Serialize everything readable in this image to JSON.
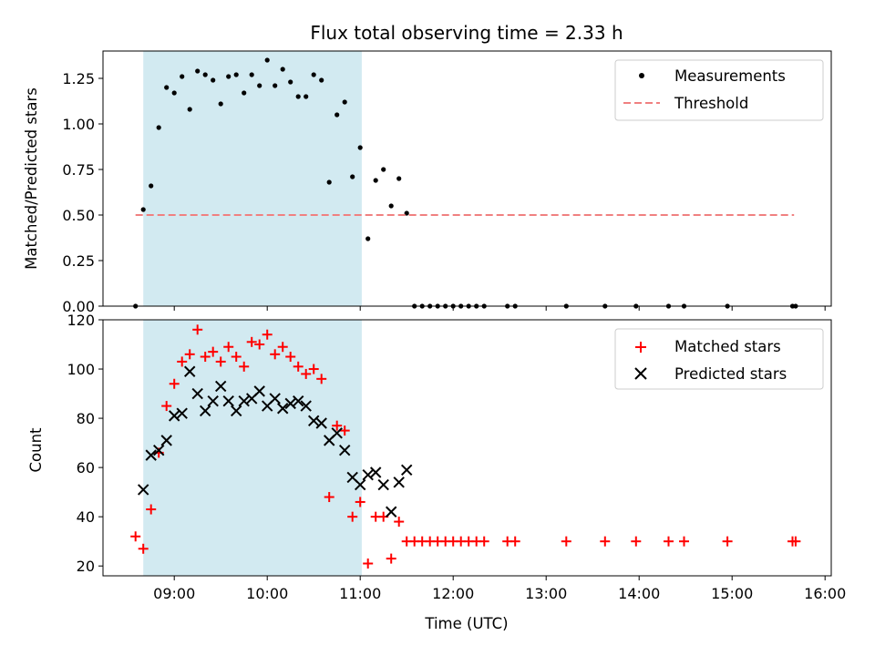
{
  "chart_data": [
    {
      "type": "scatter",
      "title": "Flux total observing time = 2.33 h",
      "xlabel": "",
      "ylabel": "Matched/Predicted stars",
      "xlim": [
        "08:14",
        "16:04"
      ],
      "ylim": [
        0,
        1.4
      ],
      "yticks": [
        "0.00",
        "0.25",
        "0.50",
        "0.75",
        "1.00",
        "1.25"
      ],
      "ytick_values": [
        0,
        0.25,
        0.5,
        0.75,
        1.0,
        1.25
      ],
      "shaded_interval": [
        "08:40",
        "11:01"
      ],
      "shade_color": "#add8e6",
      "legend_position": "upper right",
      "series": [
        {
          "name": "Measurements",
          "kind": "scatter",
          "marker": "dot",
          "color": "#000000",
          "points": [
            [
              "08:35",
              0.0
            ],
            [
              "08:40",
              0.53
            ],
            [
              "08:45",
              0.66
            ],
            [
              "08:50",
              0.98
            ],
            [
              "08:55",
              1.2
            ],
            [
              "09:00",
              1.17
            ],
            [
              "09:05",
              1.26
            ],
            [
              "09:10",
              1.08
            ],
            [
              "09:15",
              1.29
            ],
            [
              "09:20",
              1.27
            ],
            [
              "09:25",
              1.24
            ],
            [
              "09:30",
              1.11
            ],
            [
              "09:35",
              1.26
            ],
            [
              "09:40",
              1.27
            ],
            [
              "09:45",
              1.17
            ],
            [
              "09:50",
              1.27
            ],
            [
              "09:55",
              1.21
            ],
            [
              "10:00",
              1.35
            ],
            [
              "10:05",
              1.21
            ],
            [
              "10:10",
              1.3
            ],
            [
              "10:15",
              1.23
            ],
            [
              "10:20",
              1.15
            ],
            [
              "10:25",
              1.15
            ],
            [
              "10:30",
              1.27
            ],
            [
              "10:35",
              1.24
            ],
            [
              "10:40",
              0.68
            ],
            [
              "10:45",
              1.05
            ],
            [
              "10:50",
              1.12
            ],
            [
              "10:55",
              0.71
            ],
            [
              "11:00",
              0.87
            ],
            [
              "11:05",
              0.37
            ],
            [
              "11:10",
              0.69
            ],
            [
              "11:15",
              0.75
            ],
            [
              "11:20",
              0.55
            ],
            [
              "11:25",
              0.7
            ],
            [
              "11:30",
              0.51
            ],
            [
              "11:35",
              0.0
            ],
            [
              "11:40",
              0.0
            ],
            [
              "11:45",
              0.0
            ],
            [
              "11:50",
              0.0
            ],
            [
              "11:55",
              0.0
            ],
            [
              "12:00",
              0.0
            ],
            [
              "12:05",
              0.0
            ],
            [
              "12:10",
              0.0
            ],
            [
              "12:15",
              0.0
            ],
            [
              "12:20",
              0.0
            ],
            [
              "12:35",
              0.0
            ],
            [
              "12:40",
              0.0
            ],
            [
              "13:13",
              0.0
            ],
            [
              "13:38",
              0.0
            ],
            [
              "13:58",
              0.0
            ],
            [
              "14:19",
              0.0
            ],
            [
              "14:29",
              0.0
            ],
            [
              "14:57",
              0.0
            ],
            [
              "15:39",
              0.0
            ],
            [
              "15:41",
              0.0
            ]
          ]
        },
        {
          "name": "Threshold",
          "kind": "line",
          "style": "dashed",
          "color": "#f08080",
          "points": [
            [
              "08:35",
              0.5
            ],
            [
              "15:40",
              0.5
            ]
          ]
        }
      ]
    },
    {
      "type": "scatter",
      "title": "",
      "xlabel": "Time (UTC)",
      "ylabel": "Count",
      "xlim": [
        "08:14",
        "16:04"
      ],
      "ylim": [
        16,
        120
      ],
      "yticks": [
        "20",
        "40",
        "60",
        "80",
        "100",
        "120"
      ],
      "ytick_values": [
        20,
        40,
        60,
        80,
        100,
        120
      ],
      "xticks": [
        "09:00",
        "10:00",
        "11:00",
        "12:00",
        "13:00",
        "14:00",
        "15:00",
        "16:00"
      ],
      "shaded_interval": [
        "08:40",
        "11:01"
      ],
      "shade_color": "#add8e6",
      "legend_position": "upper right",
      "series": [
        {
          "name": "Matched stars",
          "marker": "plus",
          "color": "#ff0000",
          "points": [
            [
              "08:35",
              32
            ],
            [
              "08:40",
              27
            ],
            [
              "08:45",
              43
            ],
            [
              "08:50",
              66
            ],
            [
              "08:55",
              85
            ],
            [
              "09:00",
              94
            ],
            [
              "09:05",
              103
            ],
            [
              "09:10",
              106
            ],
            [
              "09:15",
              116
            ],
            [
              "09:20",
              105
            ],
            [
              "09:25",
              107
            ],
            [
              "09:30",
              103
            ],
            [
              "09:35",
              109
            ],
            [
              "09:40",
              105
            ],
            [
              "09:45",
              101
            ],
            [
              "09:50",
              111
            ],
            [
              "09:55",
              110
            ],
            [
              "10:00",
              114
            ],
            [
              "10:05",
              106
            ],
            [
              "10:10",
              109
            ],
            [
              "10:15",
              105
            ],
            [
              "10:20",
              101
            ],
            [
              "10:25",
              98
            ],
            [
              "10:30",
              100
            ],
            [
              "10:35",
              96
            ],
            [
              "10:40",
              48
            ],
            [
              "10:45",
              77
            ],
            [
              "10:50",
              75
            ],
            [
              "10:55",
              40
            ],
            [
              "11:00",
              46
            ],
            [
              "11:05",
              21
            ],
            [
              "11:10",
              40
            ],
            [
              "11:15",
              40
            ],
            [
              "11:20",
              23
            ],
            [
              "11:25",
              38
            ],
            [
              "11:30",
              30
            ],
            [
              "11:35",
              30
            ],
            [
              "11:40",
              30
            ],
            [
              "11:45",
              30
            ],
            [
              "11:50",
              30
            ],
            [
              "11:55",
              30
            ],
            [
              "12:00",
              30
            ],
            [
              "12:05",
              30
            ],
            [
              "12:10",
              30
            ],
            [
              "12:15",
              30
            ],
            [
              "12:20",
              30
            ],
            [
              "12:35",
              30
            ],
            [
              "12:40",
              30
            ],
            [
              "13:13",
              30
            ],
            [
              "13:38",
              30
            ],
            [
              "13:58",
              30
            ],
            [
              "14:19",
              30
            ],
            [
              "14:29",
              30
            ],
            [
              "14:57",
              30
            ],
            [
              "15:39",
              30
            ],
            [
              "15:41",
              30
            ]
          ]
        },
        {
          "name": "Predicted stars",
          "marker": "x",
          "color": "#000000",
          "points": [
            [
              "08:40",
              51
            ],
            [
              "08:45",
              65
            ],
            [
              "08:50",
              67
            ],
            [
              "08:55",
              71
            ],
            [
              "09:00",
              81
            ],
            [
              "09:05",
              82
            ],
            [
              "09:10",
              99
            ],
            [
              "09:15",
              90
            ],
            [
              "09:20",
              83
            ],
            [
              "09:25",
              87
            ],
            [
              "09:30",
              93
            ],
            [
              "09:35",
              87
            ],
            [
              "09:40",
              83
            ],
            [
              "09:45",
              87
            ],
            [
              "09:50",
              88
            ],
            [
              "09:55",
              91
            ],
            [
              "10:00",
              85
            ],
            [
              "10:05",
              88
            ],
            [
              "10:10",
              84
            ],
            [
              "10:15",
              86
            ],
            [
              "10:20",
              87
            ],
            [
              "10:25",
              85
            ],
            [
              "10:30",
              79
            ],
            [
              "10:35",
              78
            ],
            [
              "10:40",
              71
            ],
            [
              "10:45",
              74
            ],
            [
              "10:50",
              67
            ],
            [
              "10:55",
              56
            ],
            [
              "11:00",
              53
            ],
            [
              "11:05",
              57
            ],
            [
              "11:10",
              58
            ],
            [
              "11:15",
              53
            ],
            [
              "11:20",
              42
            ],
            [
              "11:25",
              54
            ],
            [
              "11:30",
              59
            ]
          ]
        }
      ]
    }
  ]
}
